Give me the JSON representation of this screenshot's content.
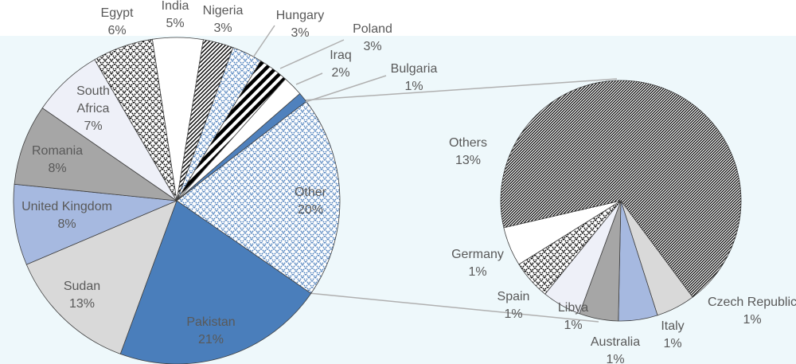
{
  "chart_data": [
    {
      "type": "pie",
      "categories": [
        "India",
        "Nigeria",
        "Hungary",
        "Poland",
        "Iraq",
        "Bulgaria",
        "Other",
        "Pakistan",
        "Sudan",
        "United Kingdom",
        "Romania",
        "South Africa",
        "Egypt"
      ],
      "values": [
        5,
        3,
        3,
        3,
        2,
        1,
        20,
        21,
        13,
        8,
        8,
        7,
        6
      ],
      "value_labels": [
        "5%",
        "3%",
        "3%",
        "3%",
        "2%",
        "1%",
        "20%",
        "21%",
        "13%",
        "8%",
        "8%",
        "7%",
        "6%"
      ],
      "colors": [
        "#ffffff",
        "#000000",
        "#4f81bd",
        "#000000",
        "#ffffff",
        "#4f81bd",
        "#4f81bd",
        "#4a7ebb",
        "#d9d9d9",
        "#a6b9e0",
        "#a6a6a6",
        "#eef0f8",
        "#000000"
      ],
      "patterns": [
        null,
        "diagonal",
        "check",
        "stripes",
        null,
        null,
        "check",
        null,
        null,
        null,
        null,
        null,
        "check"
      ]
    },
    {
      "type": "pie",
      "categories": [
        "Others",
        "Czech Republic",
        "Italy",
        "Australia",
        "Libya",
        "Spain",
        "Germany"
      ],
      "values": [
        13,
        1,
        1,
        1,
        1,
        1,
        1
      ],
      "value_labels": [
        "13%",
        "1%",
        "1%",
        "1%",
        "1%",
        "1%",
        "1%"
      ],
      "colors": [
        "#000000",
        "#d9d9d9",
        "#a6b9e0",
        "#a6a6a6",
        "#eef0f8",
        "#000000",
        "#ffffff"
      ],
      "patterns": [
        "dense",
        null,
        null,
        null,
        null,
        "check",
        null
      ]
    }
  ]
}
